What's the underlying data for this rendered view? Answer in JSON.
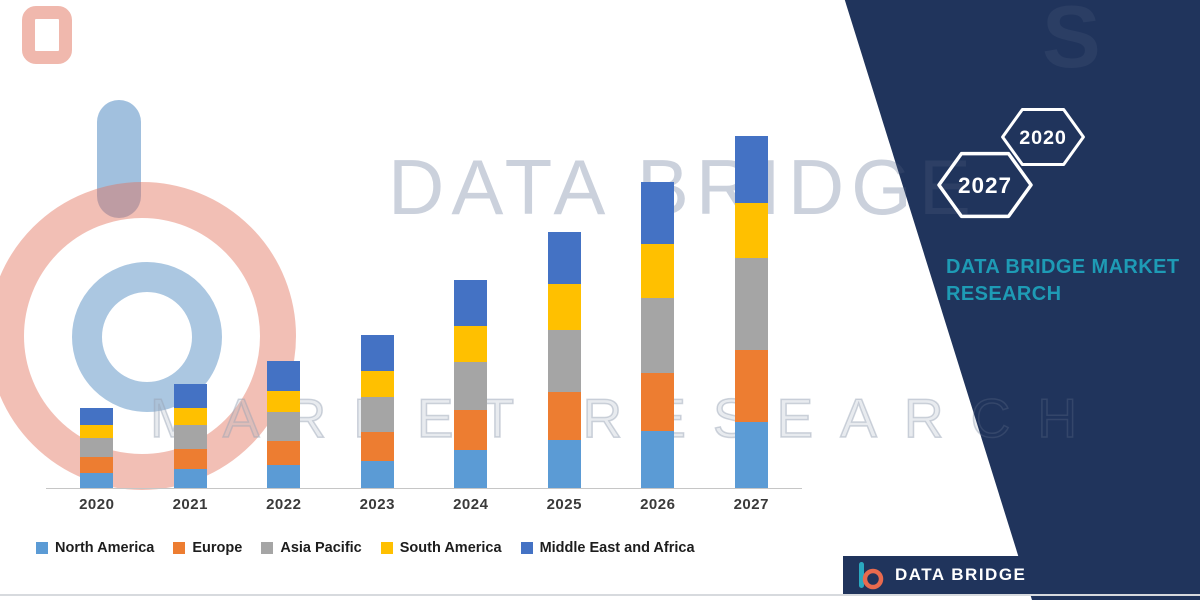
{
  "brand_panel": {
    "background": "#20345c",
    "hexagon_badges": [
      {
        "label": "2027"
      },
      {
        "label": "2020"
      }
    ],
    "heading_line1": "DATA BRIDGE MARKET",
    "heading_line2": "RESEARCH",
    "heading_color": "#1e9bb5"
  },
  "watermarks": {
    "big_text": "DATA BRIDGE",
    "row_text": "MARKET RESEARCH"
  },
  "footer": {
    "logo_text": "DATA BRIDGE"
  },
  "chart_data": {
    "type": "bar",
    "stacked": true,
    "title": "",
    "xlabel": "",
    "ylabel": "",
    "value_axis_visible": false,
    "legend_position": "bottom",
    "categories": [
      "2020",
      "2021",
      "2022",
      "2023",
      "2024",
      "2025",
      "2026",
      "2027"
    ],
    "series": [
      {
        "name": "North America",
        "color": "#5B9BD5",
        "values": [
          15,
          19,
          23,
          27,
          38,
          48,
          57,
          66
        ]
      },
      {
        "name": "Europe",
        "color": "#ED7D31",
        "values": [
          16,
          20,
          24,
          29,
          40,
          48,
          58,
          72
        ]
      },
      {
        "name": "Asia Pacific",
        "color": "#A5A5A5",
        "values": [
          19,
          24,
          29,
          35,
          48,
          62,
          75,
          92
        ]
      },
      {
        "name": "South America",
        "color": "#FFC000",
        "values": [
          13,
          17,
          21,
          26,
          36,
          46,
          54,
          55
        ]
      },
      {
        "name": "Middle East and Africa",
        "color": "#4472C4",
        "values": [
          17,
          24,
          30,
          36,
          46,
          52,
          62,
          67
        ]
      }
    ]
  }
}
